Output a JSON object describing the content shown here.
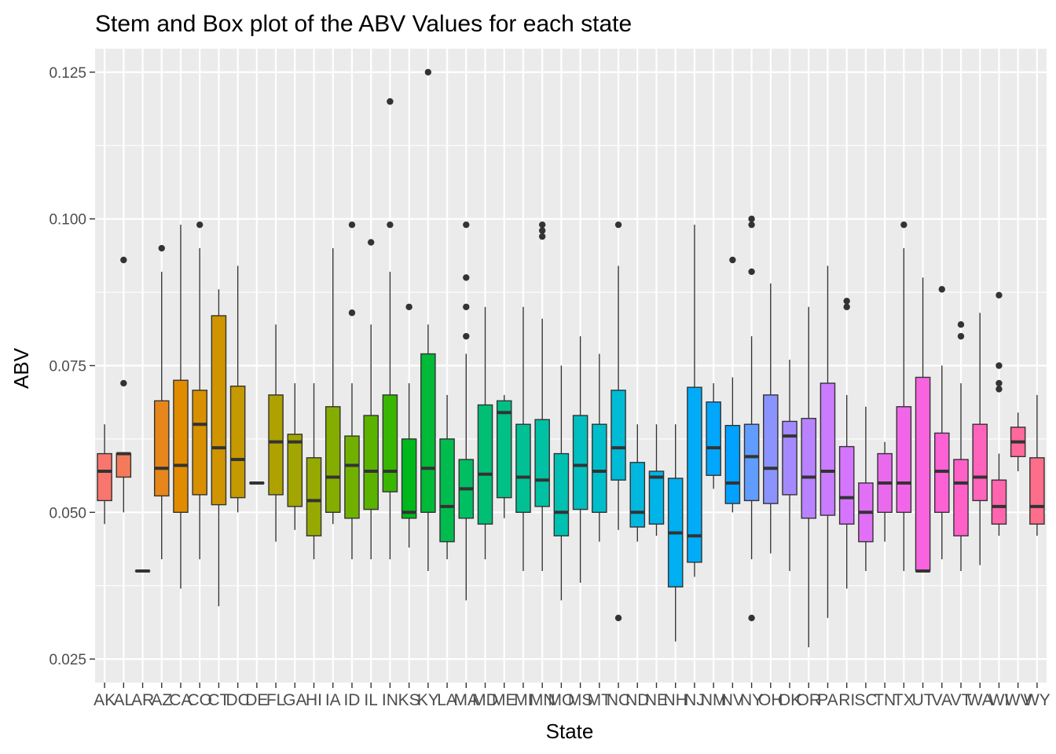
{
  "chart_data": {
    "type": "box",
    "title": "Stem and Box plot of the ABV Values for each state",
    "xlabel": "State",
    "ylabel": "ABV",
    "ylim": [
      0.021,
      0.129
    ],
    "y_ticks": [
      0.025,
      0.05,
      0.075,
      0.1,
      0.125
    ],
    "y_tick_labels": [
      "0.025",
      "0.050",
      "0.075",
      "0.100",
      "0.125"
    ],
    "grid": true,
    "legend": "none",
    "panel_color": "#ebebeb",
    "categories": [
      "AK",
      "AL",
      "AR",
      "AZ",
      "CA",
      "CO",
      "CT",
      "DC",
      "DE",
      "FL",
      "GA",
      "HI",
      "IA",
      "ID",
      "IL",
      "IN",
      "KS",
      "KY",
      "LA",
      "MA",
      "MD",
      "ME",
      "MI",
      "MN",
      "MO",
      "MS",
      "MT",
      "NC",
      "ND",
      "NE",
      "NH",
      "NJ",
      "NM",
      "NV",
      "NY",
      "OH",
      "OK",
      "OR",
      "PA",
      "RI",
      "SC",
      "TN",
      "TX",
      "UT",
      "VA",
      "VT",
      "WA",
      "WI",
      "WV",
      "WY"
    ],
    "boxes": [
      {
        "state": "AK",
        "color": "#F8766D",
        "min": 0.048,
        "q1": 0.052,
        "median": 0.057,
        "q3": 0.06,
        "max": 0.065,
        "outliers": []
      },
      {
        "state": "AL",
        "color": "#F37B59",
        "min": 0.05,
        "q1": 0.056,
        "median": 0.06,
        "q3": 0.06,
        "max": 0.06,
        "outliers": [
          0.072,
          0.093
        ]
      },
      {
        "state": "AR",
        "color": "#ED8141",
        "min": 0.04,
        "q1": 0.04,
        "median": 0.04,
        "q3": 0.04,
        "max": 0.04,
        "outliers": []
      },
      {
        "state": "AZ",
        "color": "#E7861B",
        "min": 0.042,
        "q1": 0.0528,
        "median": 0.0575,
        "q3": 0.069,
        "max": 0.091,
        "outliers": [
          0.095
        ]
      },
      {
        "state": "CA",
        "color": "#E08B00",
        "min": 0.037,
        "q1": 0.05,
        "median": 0.058,
        "q3": 0.0725,
        "max": 0.099,
        "outliers": []
      },
      {
        "state": "CO",
        "color": "#D89000",
        "min": 0.042,
        "q1": 0.053,
        "median": 0.065,
        "q3": 0.0708,
        "max": 0.095,
        "outliers": [
          0.099
        ]
      },
      {
        "state": "CT",
        "color": "#CF9400",
        "min": 0.034,
        "q1": 0.0513,
        "median": 0.061,
        "q3": 0.0835,
        "max": 0.088,
        "outliers": []
      },
      {
        "state": "DC",
        "color": "#C59900",
        "min": 0.05,
        "q1": 0.0525,
        "median": 0.059,
        "q3": 0.0715,
        "max": 0.092,
        "outliers": []
      },
      {
        "state": "DE",
        "color": "#BB9D00",
        "min": 0.055,
        "q1": 0.055,
        "median": 0.055,
        "q3": 0.055,
        "max": 0.055,
        "outliers": []
      },
      {
        "state": "FL",
        "color": "#AFA100",
        "min": 0.045,
        "q1": 0.053,
        "median": 0.062,
        "q3": 0.07,
        "max": 0.082,
        "outliers": []
      },
      {
        "state": "GA",
        "color": "#A3A500",
        "min": 0.047,
        "q1": 0.051,
        "median": 0.062,
        "q3": 0.0633,
        "max": 0.072,
        "outliers": []
      },
      {
        "state": "HI",
        "color": "#95A900",
        "min": 0.042,
        "q1": 0.046,
        "median": 0.052,
        "q3": 0.0593,
        "max": 0.072,
        "outliers": []
      },
      {
        "state": "IA",
        "color": "#85AD00",
        "min": 0.048,
        "q1": 0.05,
        "median": 0.056,
        "q3": 0.068,
        "max": 0.095,
        "outliers": []
      },
      {
        "state": "ID",
        "color": "#72B000",
        "min": 0.042,
        "q1": 0.049,
        "median": 0.058,
        "q3": 0.063,
        "max": 0.072,
        "outliers": [
          0.084,
          0.099
        ]
      },
      {
        "state": "IL",
        "color": "#5BB300",
        "min": 0.042,
        "q1": 0.0505,
        "median": 0.057,
        "q3": 0.0665,
        "max": 0.082,
        "outliers": [
          0.096
        ]
      },
      {
        "state": "IN",
        "color": "#39B600",
        "min": 0.042,
        "q1": 0.0535,
        "median": 0.057,
        "q3": 0.07,
        "max": 0.091,
        "outliers": [
          0.099,
          0.12
        ]
      },
      {
        "state": "KS",
        "color": "#00B81B",
        "min": 0.044,
        "q1": 0.049,
        "median": 0.05,
        "q3": 0.0625,
        "max": 0.072,
        "outliers": [
          0.085
        ]
      },
      {
        "state": "KY",
        "color": "#00BA38",
        "min": 0.04,
        "q1": 0.05,
        "median": 0.0575,
        "q3": 0.077,
        "max": 0.082,
        "outliers": [
          0.125
        ]
      },
      {
        "state": "LA",
        "color": "#00BC4E",
        "min": 0.042,
        "q1": 0.045,
        "median": 0.051,
        "q3": 0.0625,
        "max": 0.07,
        "outliers": []
      },
      {
        "state": "MA",
        "color": "#00BE62",
        "min": 0.035,
        "q1": 0.049,
        "median": 0.054,
        "q3": 0.059,
        "max": 0.077,
        "outliers": [
          0.08,
          0.085,
          0.09,
          0.099
        ]
      },
      {
        "state": "MD",
        "color": "#00BF74",
        "min": 0.042,
        "q1": 0.048,
        "median": 0.0565,
        "q3": 0.0683,
        "max": 0.085,
        "outliers": []
      },
      {
        "state": "ME",
        "color": "#00C085",
        "min": 0.049,
        "q1": 0.0525,
        "median": 0.067,
        "q3": 0.069,
        "max": 0.07,
        "outliers": []
      },
      {
        "state": "MI",
        "color": "#00C094",
        "min": 0.04,
        "q1": 0.05,
        "median": 0.056,
        "q3": 0.065,
        "max": 0.085,
        "outliers": []
      },
      {
        "state": "MN",
        "color": "#00C1A3",
        "min": 0.04,
        "q1": 0.051,
        "median": 0.0555,
        "q3": 0.0658,
        "max": 0.083,
        "outliers": [
          0.097,
          0.098,
          0.099
        ]
      },
      {
        "state": "MO",
        "color": "#00C0B1",
        "min": 0.035,
        "q1": 0.046,
        "median": 0.05,
        "q3": 0.06,
        "max": 0.075,
        "outliers": []
      },
      {
        "state": "MS",
        "color": "#00BFBE",
        "min": 0.038,
        "q1": 0.0505,
        "median": 0.058,
        "q3": 0.0665,
        "max": 0.08,
        "outliers": []
      },
      {
        "state": "MT",
        "color": "#00BDCA",
        "min": 0.045,
        "q1": 0.05,
        "median": 0.057,
        "q3": 0.065,
        "max": 0.077,
        "outliers": []
      },
      {
        "state": "NC",
        "color": "#00BBD5",
        "min": 0.047,
        "q1": 0.0555,
        "median": 0.061,
        "q3": 0.0708,
        "max": 0.092,
        "outliers": [
          0.032,
          0.099
        ]
      },
      {
        "state": "ND",
        "color": "#00B8DF",
        "min": 0.045,
        "q1": 0.0475,
        "median": 0.05,
        "q3": 0.0585,
        "max": 0.065,
        "outliers": []
      },
      {
        "state": "NE",
        "color": "#00B4E8",
        "min": 0.046,
        "q1": 0.048,
        "median": 0.056,
        "q3": 0.057,
        "max": 0.065,
        "outliers": []
      },
      {
        "state": "NH",
        "color": "#00B0F0",
        "min": 0.028,
        "q1": 0.0373,
        "median": 0.0465,
        "q3": 0.0558,
        "max": 0.065,
        "outliers": []
      },
      {
        "state": "NJ",
        "color": "#00ACF7",
        "min": 0.039,
        "q1": 0.0415,
        "median": 0.046,
        "q3": 0.0713,
        "max": 0.099,
        "outliers": []
      },
      {
        "state": "NM",
        "color": "#00A7FC",
        "min": 0.054,
        "q1": 0.0563,
        "median": 0.061,
        "q3": 0.0688,
        "max": 0.072,
        "outliers": []
      },
      {
        "state": "NV",
        "color": "#00A1FF",
        "min": 0.05,
        "q1": 0.0515,
        "median": 0.055,
        "q3": 0.0648,
        "max": 0.073,
        "outliers": [
          0.093
        ]
      },
      {
        "state": "NY",
        "color": "#619CFF",
        "min": 0.042,
        "q1": 0.052,
        "median": 0.0595,
        "q3": 0.065,
        "max": 0.08,
        "outliers": [
          0.032,
          0.091,
          0.099,
          0.1
        ]
      },
      {
        "state": "OH",
        "color": "#8B93FF",
        "min": 0.043,
        "q1": 0.0515,
        "median": 0.0575,
        "q3": 0.07,
        "max": 0.089,
        "outliers": []
      },
      {
        "state": "OK",
        "color": "#A58AFF",
        "min": 0.04,
        "q1": 0.053,
        "median": 0.063,
        "q3": 0.0655,
        "max": 0.076,
        "outliers": []
      },
      {
        "state": "OR",
        "color": "#B983FF",
        "min": 0.027,
        "q1": 0.049,
        "median": 0.056,
        "q3": 0.066,
        "max": 0.085,
        "outliers": []
      },
      {
        "state": "PA",
        "color": "#C97CFD",
        "min": 0.032,
        "q1": 0.0495,
        "median": 0.057,
        "q3": 0.072,
        "max": 0.092,
        "outliers": []
      },
      {
        "state": "RI",
        "color": "#D575FE",
        "min": 0.037,
        "q1": 0.048,
        "median": 0.0525,
        "q3": 0.0612,
        "max": 0.07,
        "outliers": [
          0.085,
          0.086
        ]
      },
      {
        "state": "SC",
        "color": "#E170F6",
        "min": 0.04,
        "q1": 0.045,
        "median": 0.05,
        "q3": 0.055,
        "max": 0.068,
        "outliers": []
      },
      {
        "state": "TN",
        "color": "#EA6AEE",
        "min": 0.045,
        "q1": 0.05,
        "median": 0.055,
        "q3": 0.06,
        "max": 0.062,
        "outliers": []
      },
      {
        "state": "TX",
        "color": "#F166E8",
        "min": 0.04,
        "q1": 0.05,
        "median": 0.055,
        "q3": 0.068,
        "max": 0.095,
        "outliers": [
          0.099
        ]
      },
      {
        "state": "UT",
        "color": "#F863DF",
        "min": 0.04,
        "q1": 0.04,
        "median": 0.04,
        "q3": 0.073,
        "max": 0.09,
        "outliers": []
      },
      {
        "state": "VA",
        "color": "#FC61D5",
        "min": 0.042,
        "q1": 0.05,
        "median": 0.057,
        "q3": 0.0635,
        "max": 0.075,
        "outliers": [
          0.088
        ]
      },
      {
        "state": "VT",
        "color": "#FF61C9",
        "min": 0.04,
        "q1": 0.046,
        "median": 0.055,
        "q3": 0.059,
        "max": 0.072,
        "outliers": [
          0.08,
          0.082
        ]
      },
      {
        "state": "WA",
        "color": "#FF63BC",
        "min": 0.041,
        "q1": 0.052,
        "median": 0.056,
        "q3": 0.065,
        "max": 0.084,
        "outliers": []
      },
      {
        "state": "WI",
        "color": "#FF66AD",
        "min": 0.046,
        "q1": 0.048,
        "median": 0.051,
        "q3": 0.0555,
        "max": 0.06,
        "outliers": [
          0.071,
          0.072,
          0.075,
          0.087
        ]
      },
      {
        "state": "WV",
        "color": "#FF699C",
        "min": 0.057,
        "q1": 0.0595,
        "median": 0.062,
        "q3": 0.0645,
        "max": 0.067,
        "outliers": []
      },
      {
        "state": "WY",
        "color": "#FC6E8A",
        "min": 0.046,
        "q1": 0.048,
        "median": 0.051,
        "q3": 0.0593,
        "max": 0.07,
        "outliers": []
      }
    ]
  }
}
